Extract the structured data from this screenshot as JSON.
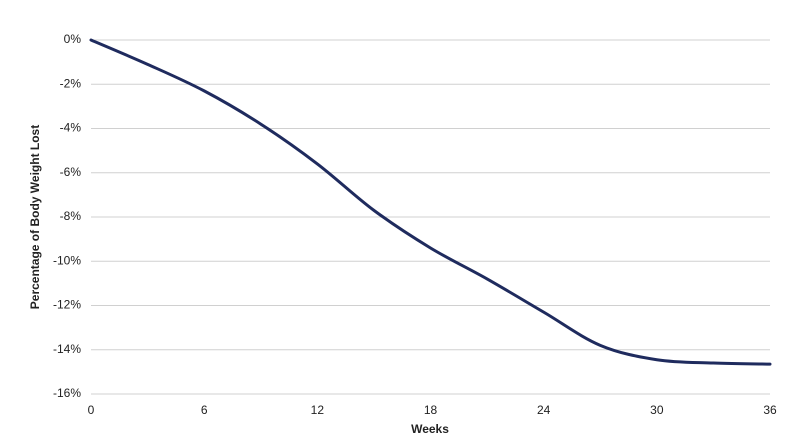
{
  "chart_data": {
    "type": "line",
    "x_label": "Weeks",
    "y_label": "Percentage of Body Weight Lost",
    "x": [
      0,
      3,
      6,
      9,
      12,
      15,
      18,
      21,
      24,
      27,
      30,
      33,
      36
    ],
    "series": [
      {
        "color": "#1f2b5e",
        "values": [
          0,
          -1.1,
          -2.3,
          -3.8,
          -5.6,
          -7.7,
          -9.4,
          -10.8,
          -12.3,
          -13.8,
          -14.45,
          -14.6,
          -14.65
        ]
      }
    ],
    "xlim": [
      0,
      36
    ],
    "xticks": [
      0,
      6,
      12,
      18,
      24,
      30,
      36
    ],
    "ylim": [
      -16,
      0
    ],
    "yticks": [
      {
        "value": 0,
        "label": "0%"
      },
      {
        "value": -2,
        "label": "-2%"
      },
      {
        "value": -4,
        "label": "-4%"
      },
      {
        "value": -6,
        "label": "-6%"
      },
      {
        "value": -8,
        "label": "-8%"
      },
      {
        "value": -10,
        "label": "-10%"
      },
      {
        "value": -12,
        "label": "-12%"
      },
      {
        "value": -14,
        "label": "-14%"
      },
      {
        "value": -16,
        "label": "-16%"
      }
    ],
    "grid": true
  }
}
